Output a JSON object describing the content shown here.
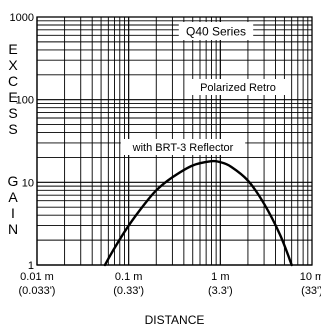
{
  "chart_data": {
    "type": "line",
    "title": "Q40 Series",
    "subtitle": "Polarized Retro",
    "xlabel": "DISTANCE",
    "ylabel": "EXCESS GAIN",
    "x_scale": "log",
    "y_scale": "log",
    "xlim": [
      0.01,
      10
    ],
    "ylim": [
      1,
      1000
    ],
    "grid": true,
    "x_ticks": [
      {
        "value": 0.01,
        "label": "0.01 m",
        "sublabel": "(0.033')"
      },
      {
        "value": 0.1,
        "label": "0.1 m",
        "sublabel": "(0.33')"
      },
      {
        "value": 1,
        "label": "1 m",
        "sublabel": "(3.3')"
      },
      {
        "value": 10,
        "label": "10 m",
        "sublabel": "(33')"
      }
    ],
    "y_ticks": [
      {
        "value": 1,
        "label": "1"
      },
      {
        "value": 10,
        "label": "10"
      },
      {
        "value": 100,
        "label": "100"
      },
      {
        "value": 1000,
        "label": "1000"
      }
    ],
    "series": [
      {
        "name": "with BRT-3 Reflector",
        "color": "#000000",
        "x": [
          0.055,
          0.07,
          0.1,
          0.15,
          0.2,
          0.3,
          0.5,
          0.8,
          1.0,
          1.3,
          2.0,
          3.0,
          4.5,
          6.0
        ],
        "y": [
          1.0,
          1.6,
          3.0,
          5.5,
          8.0,
          11.5,
          16.0,
          18.0,
          17.5,
          15.5,
          10.5,
          5.5,
          2.3,
          1.0
        ]
      }
    ]
  }
}
